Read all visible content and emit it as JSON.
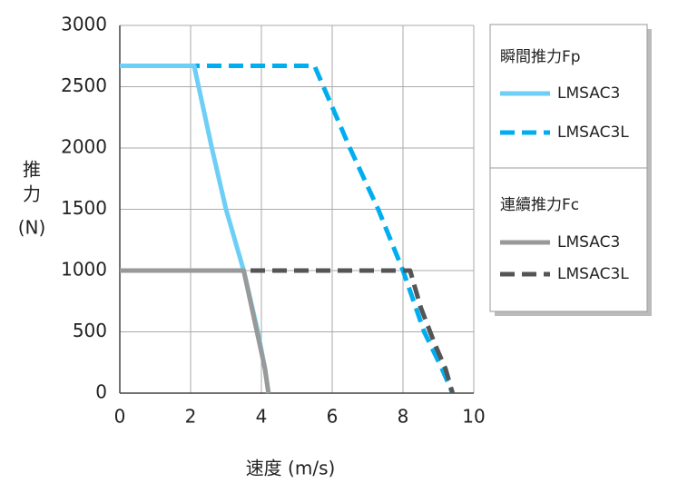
{
  "chart_data": {
    "type": "line",
    "xlabel": "速度 (m/s)",
    "ylabel_lines": [
      "推",
      "力",
      "(N)"
    ],
    "xlim": [
      0,
      10
    ],
    "xticks": [
      0,
      2,
      4,
      6,
      8,
      10
    ],
    "ylim": [
      0,
      3000
    ],
    "yticks": [
      0,
      500,
      1000,
      1500,
      2000,
      2500,
      3000
    ],
    "grid": true,
    "series": [
      {
        "name": "LMSAC3",
        "group": "瞬間推力Fp",
        "color": "#6ecff6",
        "dash": false,
        "x": [
          0,
          2.1,
          2.6,
          3.0,
          3.5,
          3.9,
          4.1,
          4.2
        ],
        "values": [
          2670,
          2670,
          2000,
          1500,
          1000,
          500,
          200,
          0
        ]
      },
      {
        "name": "LMSAC3L",
        "group": "瞬間推力Fp",
        "color": "#00aeef",
        "dash": true,
        "x": [
          0,
          5.5,
          6.5,
          7.3,
          8.0,
          8.6,
          9.1,
          9.4
        ],
        "values": [
          2670,
          2670,
          2000,
          1500,
          1000,
          500,
          200,
          0
        ]
      },
      {
        "name": "LMSAC3",
        "group": "連續推力Fc",
        "color": "#999999",
        "dash": false,
        "x": [
          0,
          3.5,
          3.8,
          4.1,
          4.2
        ],
        "values": [
          1000,
          1000,
          600,
          200,
          0
        ]
      },
      {
        "name": "LMSAC3L",
        "group": "連續推力Fc",
        "color": "#555555",
        "dash": true,
        "x": [
          0,
          8.2,
          8.5,
          8.9,
          9.2,
          9.4
        ],
        "values": [
          1000,
          1000,
          700,
          400,
          200,
          0
        ]
      }
    ]
  }
}
